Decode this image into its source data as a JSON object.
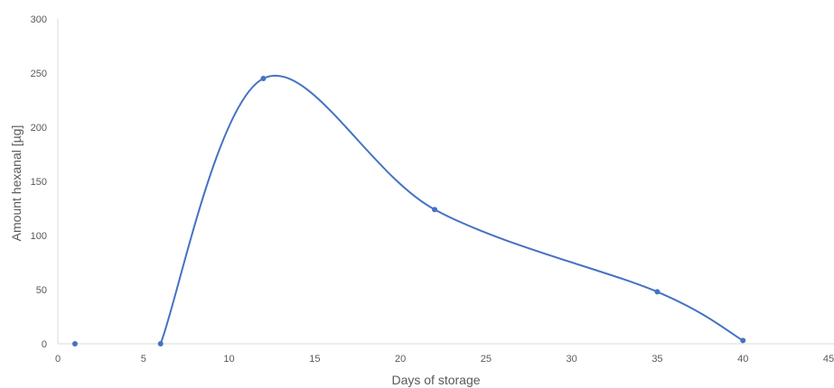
{
  "chart_data": {
    "type": "scatter",
    "title": "",
    "xlabel": "Days of storage",
    "ylabel": "Amount hexanal [µg]",
    "xlim": [
      0,
      45
    ],
    "ylim": [
      0,
      300
    ],
    "x_ticks": [
      "0",
      "5",
      "10",
      "15",
      "20",
      "25",
      "30",
      "35",
      "40",
      "45"
    ],
    "y_ticks": [
      "0",
      "50",
      "100",
      "150",
      "200",
      "250",
      "300"
    ],
    "smoothed_line": true,
    "grid": false,
    "legend": "none",
    "series": [
      {
        "color": "#4472C4",
        "points": [
          {
            "x": 1,
            "y": 0
          },
          {
            "x": 6,
            "y": 0
          },
          {
            "x": 12,
            "y": 245
          },
          {
            "x": 22,
            "y": 124
          },
          {
            "x": 35,
            "y": 48
          },
          {
            "x": 40,
            "y": 3
          }
        ]
      }
    ]
  }
}
